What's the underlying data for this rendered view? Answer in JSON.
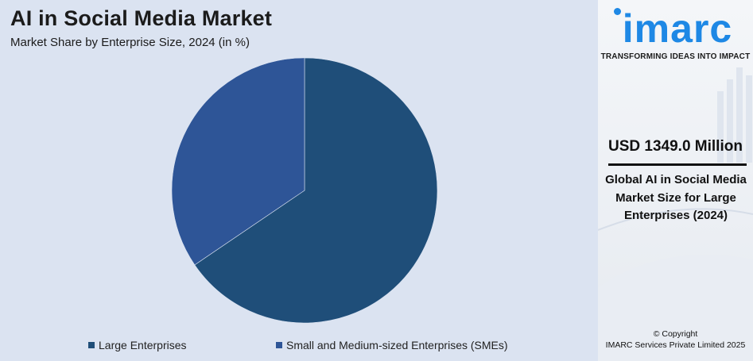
{
  "title": "AI in Social Media Market",
  "subtitle": "Market Share by Enterprise Size, 2024 (in %)",
  "chart_data": {
    "type": "pie",
    "categories": [
      "Large Enterprises",
      "Small and Medium-sized Enterprises (SMEs)"
    ],
    "values": [
      65.5,
      34.5
    ],
    "colors": [
      "#1f4e79",
      "#2e5597"
    ],
    "legend_position": "bottom",
    "start_angle": "top, clockwise"
  },
  "legend": {
    "items": [
      {
        "label": "Large Enterprises",
        "color": "#1f4e79"
      },
      {
        "label": "Small and Medium-sized Enterprises (SMEs)",
        "color": "#2e5597"
      }
    ]
  },
  "sidebar": {
    "logo_text": "imarc",
    "logo_color": "#1e88e5",
    "tagline": "TRANSFORMING IDEAS INTO IMPACT",
    "stat_value": "USD 1349.0 Million",
    "stat_description": "Global AI in Social Media Market Size for Large Enterprises (2024)",
    "copyright_line1": "© Copyright",
    "copyright_line2": "IMARC Services Private Limited 2025"
  }
}
